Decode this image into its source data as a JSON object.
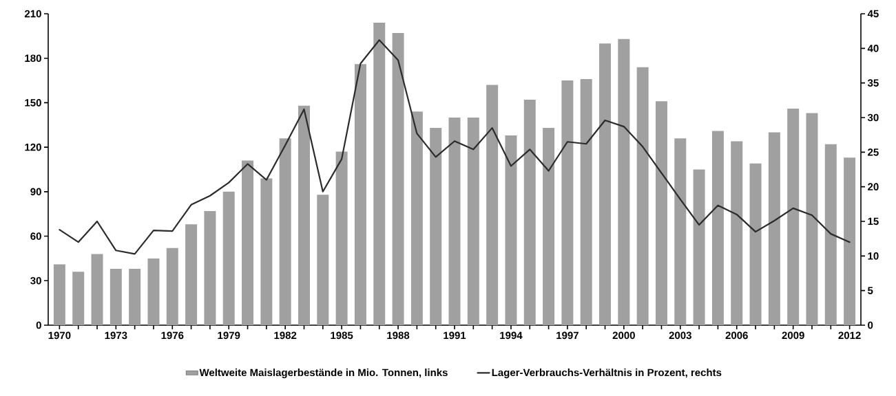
{
  "chart_data": {
    "type": "bar",
    "categories": [
      "1970",
      null,
      null,
      "1973",
      null,
      null,
      "1976",
      null,
      null,
      "1979",
      null,
      null,
      "1982",
      null,
      null,
      "1985",
      null,
      null,
      "1988",
      null,
      null,
      "1991",
      null,
      null,
      "1994",
      null,
      null,
      "1997",
      null,
      null,
      "2000",
      null,
      null,
      "2003",
      null,
      null,
      "2006",
      null,
      null,
      "2009",
      null,
      null,
      "2012"
    ],
    "series": [
      {
        "name": "Weltweite Maislagerbestände in Mio. Tonnen, links",
        "color": "#a0a0a0",
        "values": [
          41,
          36,
          48,
          38,
          38,
          45,
          52,
          68,
          77,
          90,
          111,
          99,
          126,
          148,
          88,
          117,
          176,
          204,
          197,
          144,
          133,
          140,
          140,
          162,
          128,
          152,
          133,
          165,
          166,
          190,
          193,
          174,
          151,
          126,
          105,
          131,
          124,
          109,
          130,
          146,
          143,
          122,
          113
        ]
      },
      {
        "name": "Lager-Verbrauchs-Verhältnis in Prozent, rechts",
        "type": "line",
        "axis": "y2",
        "color": "#2b2b2b",
        "values": [
          13.8,
          12,
          15,
          10.8,
          10.3,
          13.7,
          13.6,
          17.4,
          18.7,
          20.6,
          23.3,
          21,
          26,
          31.2,
          19.3,
          24,
          37.8,
          41.2,
          38.3,
          27.7,
          24.3,
          26.6,
          25.4,
          28.5,
          23,
          25.4,
          22.3,
          26.5,
          26.2,
          29.6,
          28.7,
          25.8,
          22,
          18.2,
          14.5,
          17.3,
          16,
          13.5,
          15.1,
          16.9,
          15.9,
          13.2,
          12
        ]
      }
    ],
    "ylim": [
      0,
      210
    ],
    "yticks": [
      0,
      30,
      60,
      90,
      120,
      150,
      180,
      210
    ],
    "y2lim": [
      0,
      45
    ],
    "y2ticks": [
      0,
      5,
      10,
      15,
      20,
      25,
      30,
      35,
      40,
      45
    ],
    "legend": "bottom",
    "grid": false
  }
}
